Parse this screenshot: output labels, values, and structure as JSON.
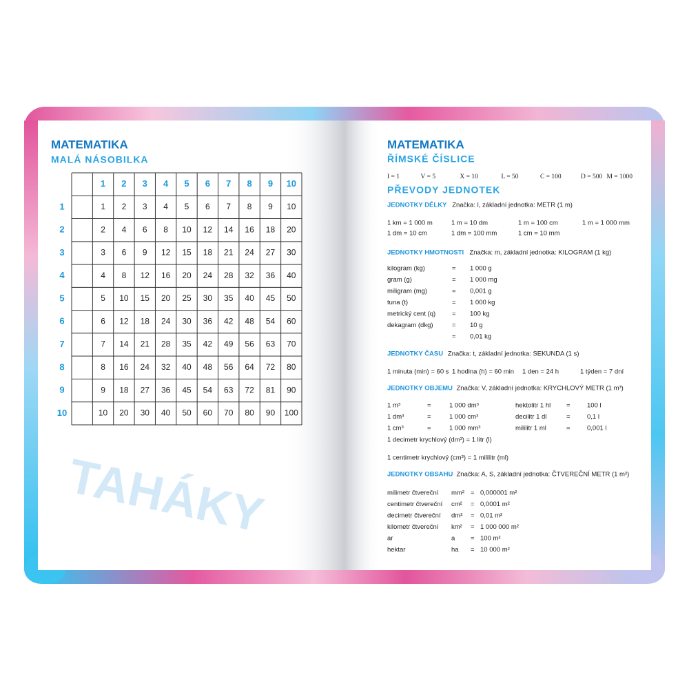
{
  "left": {
    "title": "MATEMATIKA",
    "subtitle": "MALÁ NÁSOBILKA",
    "table": {
      "header": [
        1,
        2,
        3,
        4,
        5,
        6,
        7,
        8,
        9,
        10
      ],
      "rows": [
        [
          1,
          1,
          2,
          3,
          4,
          5,
          6,
          7,
          8,
          9,
          10
        ],
        [
          2,
          2,
          4,
          6,
          8,
          10,
          12,
          14,
          16,
          18,
          20
        ],
        [
          3,
          3,
          6,
          9,
          12,
          15,
          18,
          21,
          24,
          27,
          30
        ],
        [
          4,
          4,
          8,
          12,
          16,
          20,
          24,
          28,
          32,
          36,
          40
        ],
        [
          5,
          5,
          10,
          15,
          20,
          25,
          30,
          35,
          40,
          45,
          50
        ],
        [
          6,
          6,
          12,
          18,
          24,
          30,
          36,
          42,
          48,
          54,
          60
        ],
        [
          7,
          7,
          14,
          21,
          28,
          35,
          42,
          49,
          56,
          63,
          70
        ],
        [
          8,
          8,
          16,
          24,
          32,
          40,
          48,
          56,
          64,
          72,
          80
        ],
        [
          9,
          9,
          18,
          27,
          36,
          45,
          54,
          63,
          72,
          81,
          90
        ],
        [
          10,
          10,
          20,
          30,
          40,
          50,
          60,
          70,
          80,
          90,
          100
        ]
      ]
    },
    "watermark": "TAHÁKY"
  },
  "right": {
    "title": "MATEMATIKA",
    "subtitle": "ŘÍMSKÉ ČÍSLICE",
    "roman": [
      "I = 1",
      "V = 5",
      "X = 10",
      "L = 50",
      "C = 100",
      "D = 500",
      "M = 1000"
    ],
    "units_title": "PŘEVODY JEDNOTEK",
    "sections": [
      {
        "heading": "JEDNOTKY DÉLKY",
        "note": "Značka: l, základní jednotka: METR (1 m)",
        "rows": [
          [
            "1 km = 1 000 m",
            "1 m = 10 dm",
            "1 m = 100 cm",
            "1 m = 1 000 mm"
          ],
          [
            "1 dm = 10 cm",
            "1 dm = 100 mm",
            "1 cm = 10 mm"
          ]
        ]
      },
      {
        "heading": "JEDNOTKY HMOTNOSTI",
        "note": "Značka: m, základní jednotka: KILOGRAM (1 kg)",
        "rows": [
          [
            "kilogram (kg)",
            "=",
            "1 000 g"
          ],
          [
            "gram (g)",
            "=",
            "1 000 mg"
          ],
          [
            "miligram (mg)",
            "=",
            "0,001 g"
          ],
          [
            "tuna (t)",
            "=",
            "1 000 kg"
          ],
          [
            "metrický cent (q)",
            "=",
            "100 kg"
          ],
          [
            "dekagram (dkg)",
            "=",
            "10 g"
          ],
          [
            "=",
            "0,01 kg"
          ]
        ]
      },
      {
        "heading": "JEDNOTKY ČASU",
        "note": "Značka: t, základní jednotka: SEKUNDA (1 s)",
        "rows": [
          [
            "1 minuta (min) = 60 s",
            "1 hodina (h) = 60 min",
            "1 den = 24 h",
            "1 týden = 7 dní"
          ]
        ]
      },
      {
        "heading": "JEDNOTKY OBJEMU",
        "note": "Značka: V, základní jednotka: KRYCHLOVÝ METR (1 m³)",
        "rows": [
          [
            "1 m³",
            "=",
            "1 000 dm³",
            "hektolitr 1 hl",
            "=",
            "100 l"
          ],
          [
            "1 dm³",
            "=",
            "1 000 cm³",
            "decilitr 1 dl",
            "=",
            "0,1 l"
          ],
          [
            "1 cm³",
            "=",
            "1 000 mm³",
            "mililitr 1 ml",
            "=",
            "0,001 l"
          ]
        ],
        "lines": [
          "1 decimetr krychlový (dm³) = 1 litr (l)",
          "1 centimetr krychlový (cm³) = 1 mililitr (ml)"
        ]
      },
      {
        "heading": "JEDNOTKY OBSAHU",
        "note": "Značka: A, S, základní jednotka: ČTVEREČNÍ METR (1 m²)",
        "rows": [
          [
            "milimetr čtvereční",
            "mm²",
            "=",
            "0,000001 m²"
          ],
          [
            "centimetr čtvereční",
            "cm²",
            "=",
            "0,0001 m²"
          ],
          [
            "decimetr čtvereční",
            "dm²",
            "=",
            "0,01 m²"
          ],
          [
            "kilometr čtvereční",
            "km²",
            "=",
            "1 000 000 m²"
          ],
          [
            "ar",
            "a",
            "=",
            "100 m²"
          ],
          [
            "hektar",
            "ha",
            "=",
            "10 000 m²"
          ]
        ]
      }
    ]
  }
}
